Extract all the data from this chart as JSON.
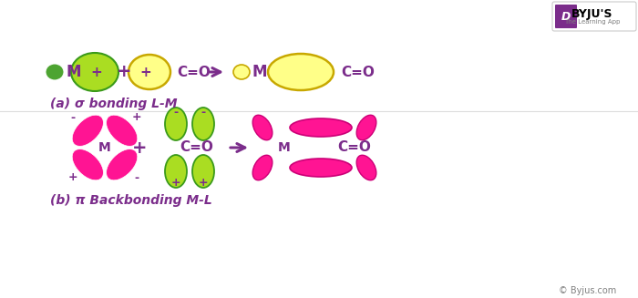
{
  "bg_color": "#ffffff",
  "purple": "#7B2D8B",
  "green_dark": "#3A9A1A",
  "green_light": "#AADD22",
  "pink": "#FF1493",
  "pink_edge": "#CC0077",
  "yellow_outer": "#C8A800",
  "yellow_inner": "#FFFF88",
  "yellow_mid": "#FFE800",
  "label_a": "(a) σ bonding L-M",
  "label_b": "(b) π Backbonding M-L",
  "byju_text": "© Byjus.com"
}
